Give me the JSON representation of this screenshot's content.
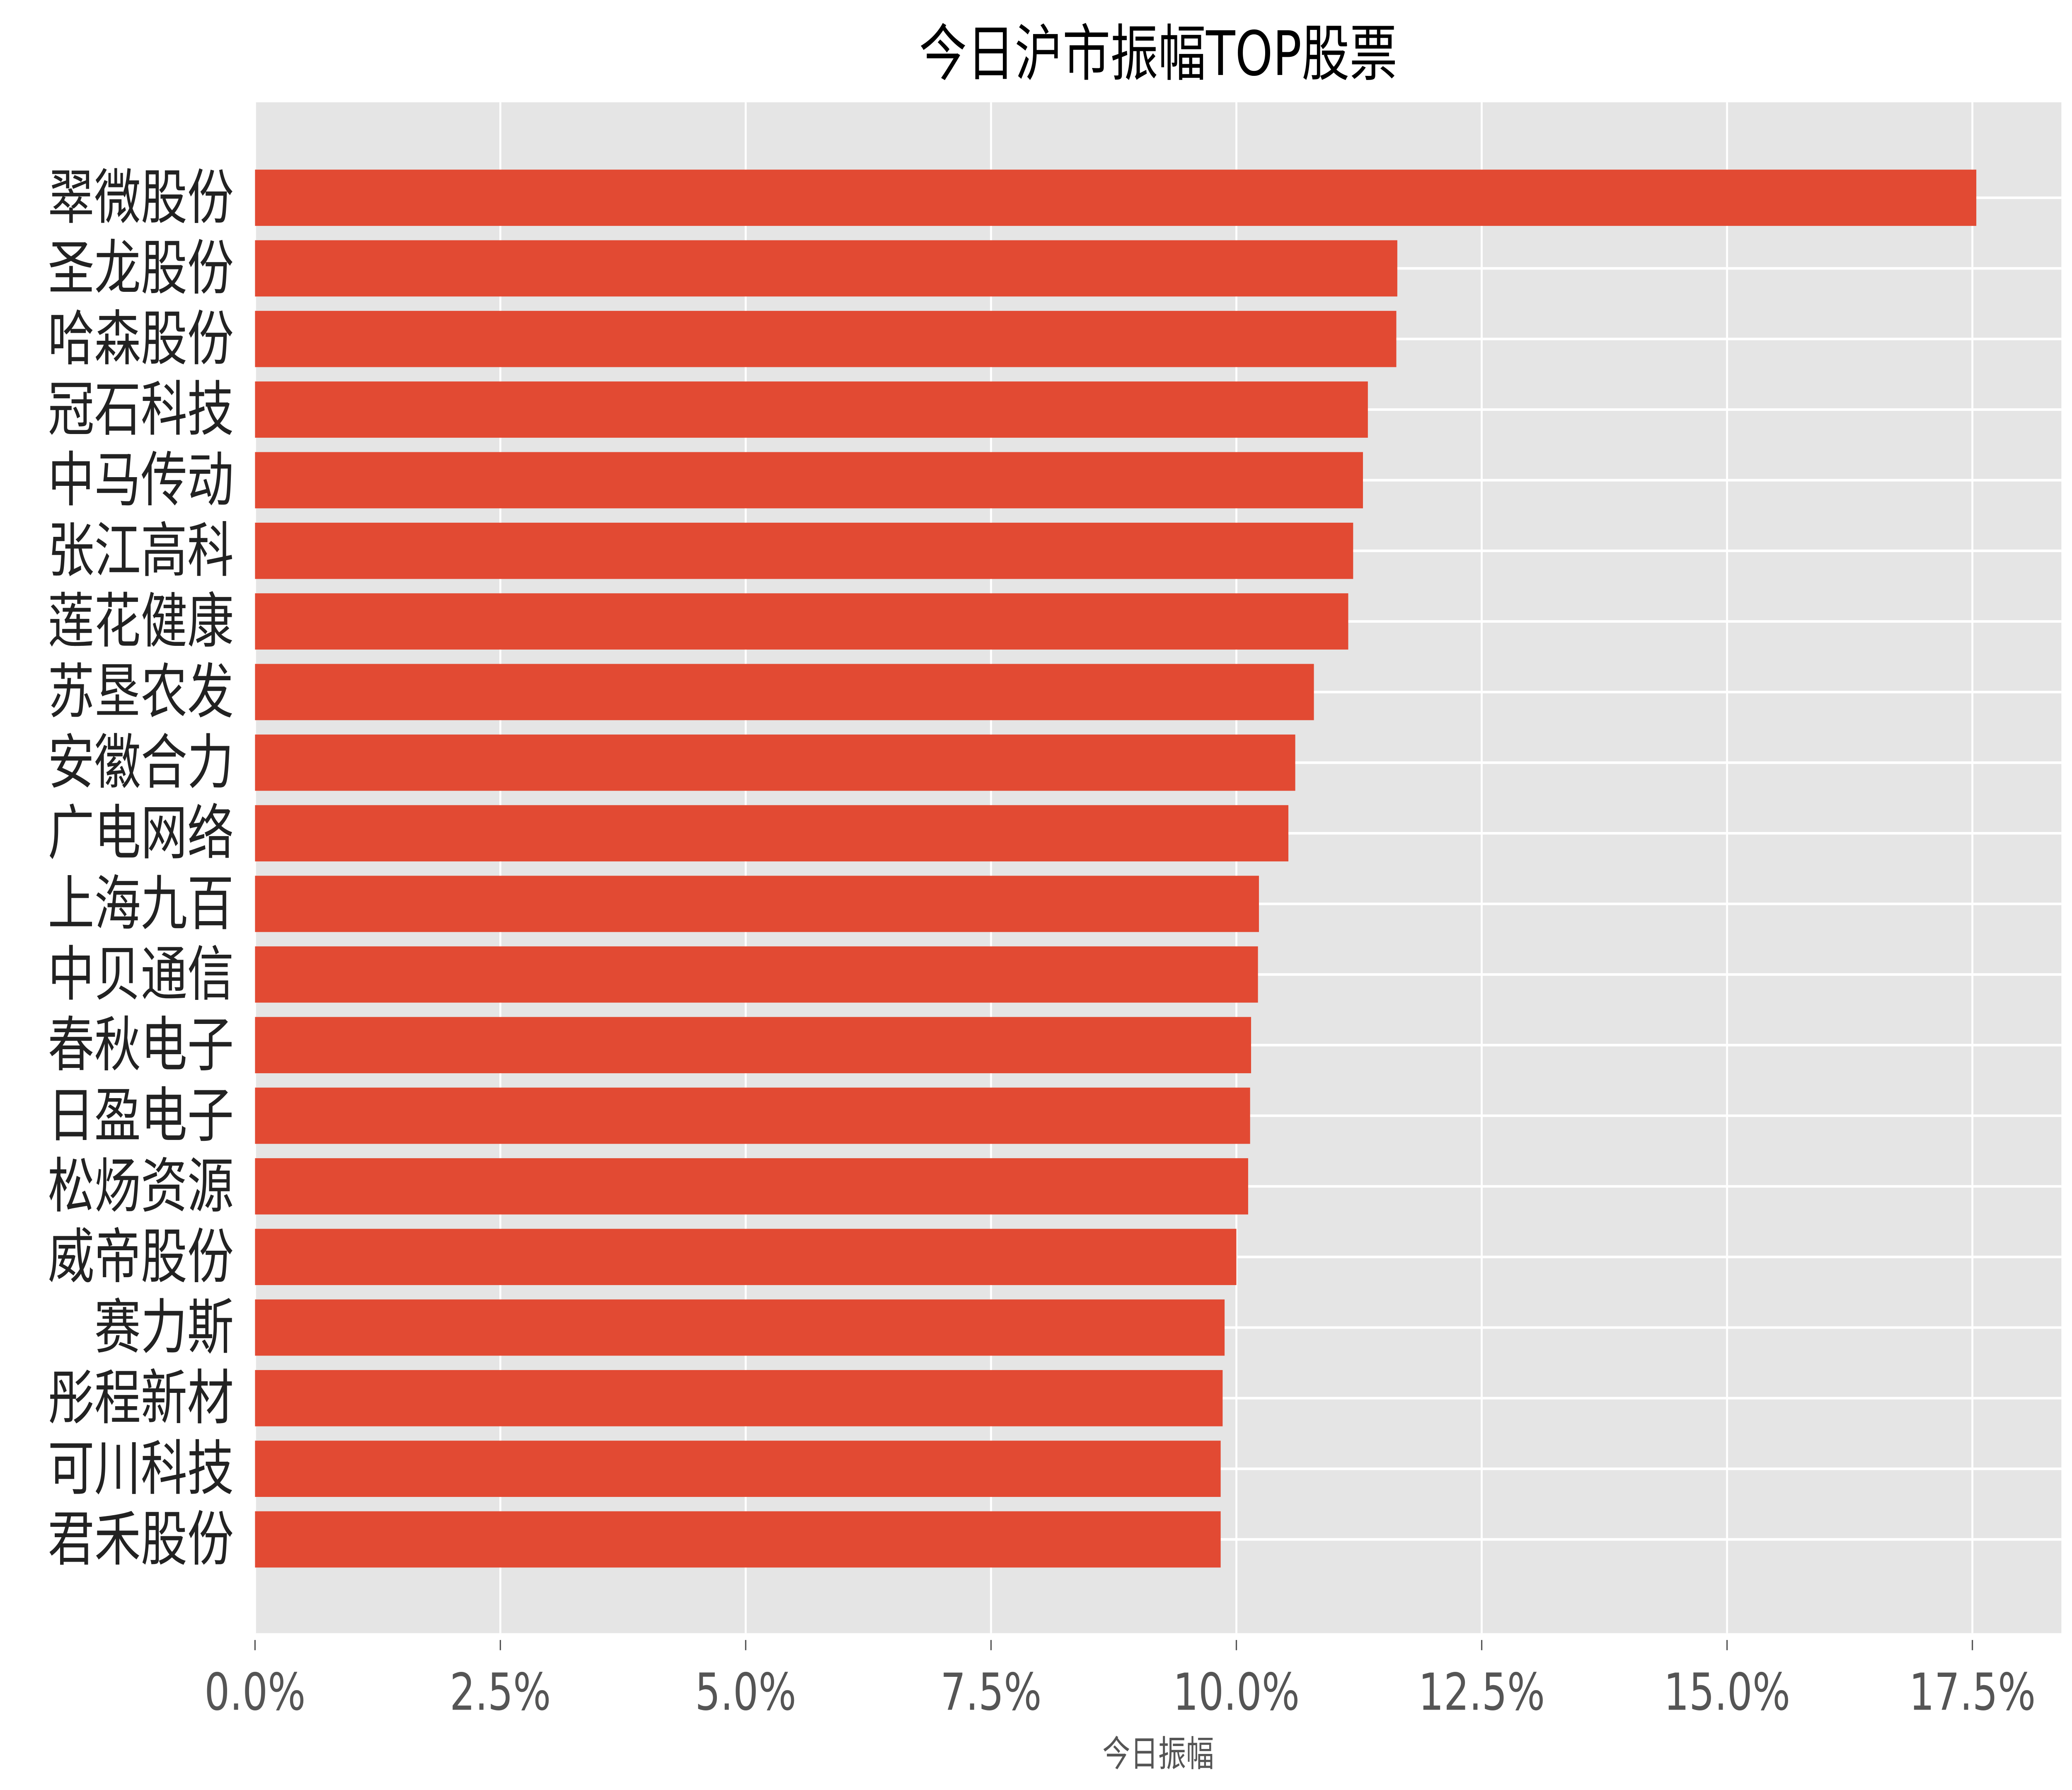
{
  "chart_data": {
    "type": "bar",
    "orientation": "horizontal",
    "title": "今日沪市振幅TOP股票",
    "xlabel": "今日振幅",
    "ylabel": "",
    "xlim": [
      0,
      18.45
    ],
    "xticks": [
      0,
      2.5,
      5,
      7.5,
      10,
      12.5,
      15,
      17.5
    ],
    "xtick_labels": [
      "0.0%",
      "2.5%",
      "5.0%",
      "7.5%",
      "10.0%",
      "12.5%",
      "15.0%",
      "17.5%"
    ],
    "grid": true,
    "bar_color": "#E24A33",
    "background_color": "#E5E5E5",
    "categories": [
      "翠微股份",
      "圣龙股份",
      "哈森股份",
      "冠石科技",
      "中马传动",
      "张江高科",
      "莲花健康",
      "苏垦农发",
      "安徽合力",
      "广电网络",
      "上海九百",
      "中贝通信",
      "春秋电子",
      "日盈电子",
      "松炀资源",
      "威帝股份",
      "赛力斯",
      "彤程新材",
      "可川科技",
      "君禾股份"
    ],
    "values": [
      17.54,
      11.64,
      11.63,
      11.34,
      11.29,
      11.19,
      11.14,
      10.79,
      10.6,
      10.53,
      10.23,
      10.22,
      10.15,
      10.14,
      10.12,
      10.0,
      9.88,
      9.86,
      9.84,
      9.84
    ]
  }
}
